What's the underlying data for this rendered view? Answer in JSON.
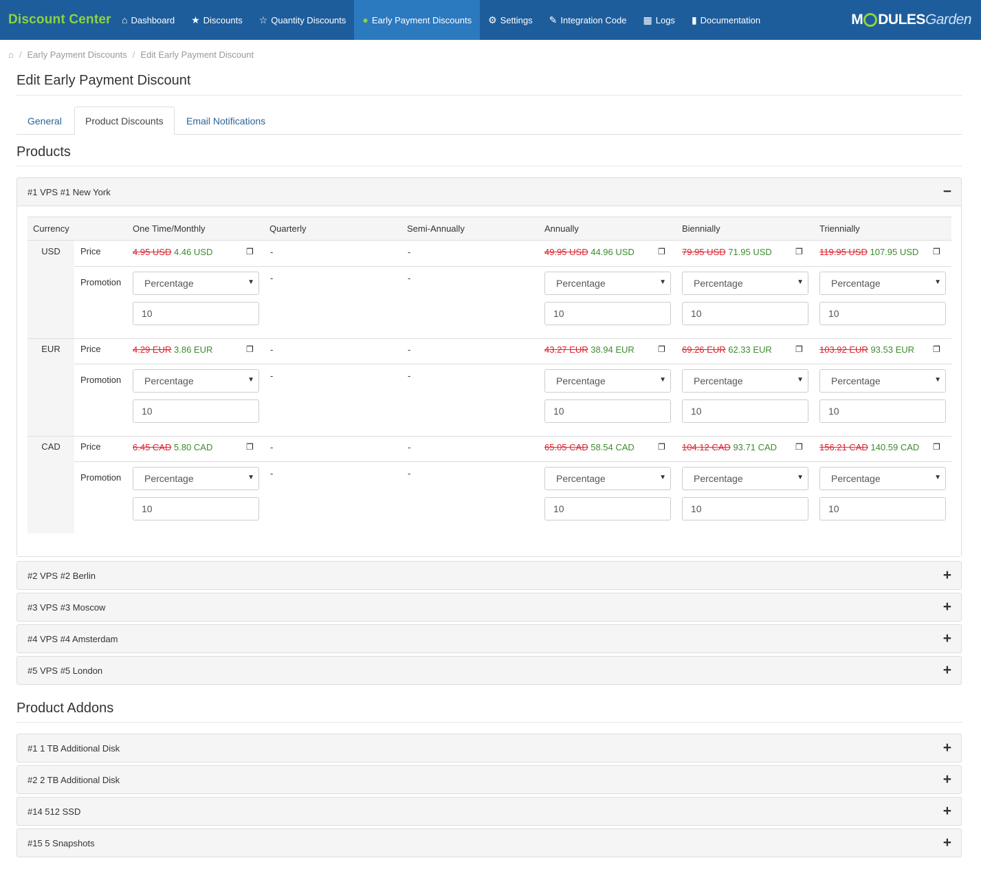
{
  "nav": {
    "brand": "Discount Center",
    "items": [
      {
        "label": "Dashboard",
        "icon": "home-icon",
        "glyph": "⌂"
      },
      {
        "label": "Discounts",
        "icon": "star-icon",
        "glyph": "★"
      },
      {
        "label": "Quantity Discounts",
        "icon": "star-outline-icon",
        "glyph": "☆"
      },
      {
        "label": "Early Payment Discounts",
        "icon": "piggy-bank-icon",
        "glyph": "●"
      },
      {
        "label": "Settings",
        "icon": "gear-icon",
        "glyph": "⚙"
      },
      {
        "label": "Integration Code",
        "icon": "edit-icon",
        "glyph": "✎"
      },
      {
        "label": "Logs",
        "icon": "calendar-icon",
        "glyph": "▦"
      },
      {
        "label": "Documentation",
        "icon": "book-icon",
        "glyph": "▮"
      }
    ],
    "logo_a": "M",
    "logo_b": "DULES",
    "logo_c": "Garden"
  },
  "breadcrumb": {
    "item1": "Early Payment Discounts",
    "item2": "Edit Early Payment Discount"
  },
  "page_title": "Edit Early Payment Discount",
  "tabs": [
    "General",
    "Product Discounts",
    "Email Notifications"
  ],
  "products_title": "Products",
  "addons_title": "Product Addons",
  "open_product": {
    "name": "#1 VPS #1 New York",
    "toggle": "−",
    "headers": [
      "Currency",
      "One Time/Monthly",
      "Quarterly",
      "Semi-Annually",
      "Annually",
      "Biennially",
      "Triennially"
    ],
    "price_label": "Price",
    "promotion_label": "Promotion",
    "dash": "-",
    "type_option": "Percentage",
    "value": "10",
    "rows": [
      {
        "currency": "USD",
        "monthly": {
          "old": "4.95 USD",
          "new": "4.46 USD"
        },
        "annually": {
          "old": "49.95 USD",
          "new": "44.96 USD"
        },
        "biennially": {
          "old": "79.95 USD",
          "new": "71.95 USD"
        },
        "triennially": {
          "old": "119.95 USD",
          "new": "107.95 USD"
        }
      },
      {
        "currency": "EUR",
        "monthly": {
          "old": "4.29 EUR",
          "new": "3.86 EUR"
        },
        "annually": {
          "old": "43.27 EUR",
          "new": "38.94 EUR"
        },
        "biennially": {
          "old": "69.26 EUR",
          "new": "62.33 EUR"
        },
        "triennially": {
          "old": "103.92 EUR",
          "new": "93.53 EUR"
        }
      },
      {
        "currency": "CAD",
        "monthly": {
          "old": "6.45 CAD",
          "new": "5.80 CAD"
        },
        "annually": {
          "old": "65.05 CAD",
          "new": "58.54 CAD"
        },
        "biennially": {
          "old": "104.12 CAD",
          "new": "93.71 CAD"
        },
        "triennially": {
          "old": "156.21 CAD",
          "new": "140.59 CAD"
        }
      }
    ]
  },
  "collapsed_products": [
    "#2 VPS #2 Berlin",
    "#3 VPS #3 Moscow",
    "#4 VPS #4 Amsterdam",
    "#5 VPS #5 London"
  ],
  "addons": [
    "#1 1 TB Additional Disk",
    "#2 2 TB Additional Disk",
    "#14 512 SSD",
    "#15 5 Snapshots"
  ],
  "expand_glyph": "+"
}
